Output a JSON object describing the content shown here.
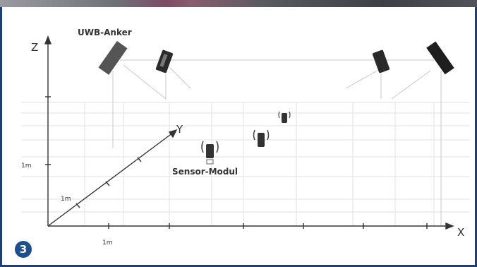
{
  "labels": {
    "anchor": "UWB-Anker",
    "sensor": "Sensor-Modul",
    "axis_x": "X",
    "axis_y": "Y",
    "axis_z": "Z",
    "tick_z": "1m",
    "tick_y": "1m",
    "tick_x": "1m"
  },
  "badge": "3",
  "colors": {
    "frame": "#1f3f73",
    "badge": "#1f4f8c",
    "device": "#333333",
    "grid": "#dddddd"
  }
}
